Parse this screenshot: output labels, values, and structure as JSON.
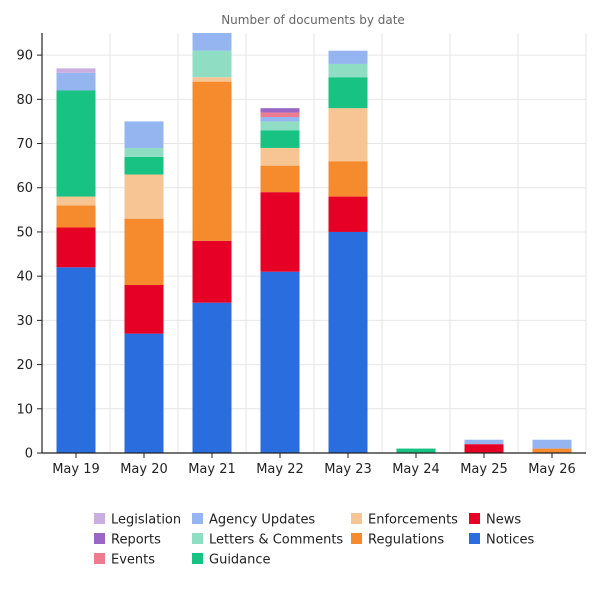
{
  "chart_data": {
    "type": "bar",
    "stacked": true,
    "title": "Number of documents by date",
    "xlabel": "",
    "ylabel": "",
    "ylim": [
      0,
      95
    ],
    "y_ticks": [
      "0",
      "10",
      "20",
      "30",
      "40",
      "50",
      "60",
      "70",
      "80",
      "90"
    ],
    "grid": true,
    "legend_position": "bottom",
    "categories": [
      "May 19",
      "May 20",
      "May 21",
      "May 22",
      "May 23",
      "May 24",
      "May 25",
      "May 26"
    ],
    "series": [
      {
        "name": "Notices",
        "color": "#2a6ddf",
        "values": [
          42,
          27,
          34,
          41,
          50,
          0,
          0,
          0
        ]
      },
      {
        "name": "News",
        "color": "#e60026",
        "values": [
          9,
          11,
          14,
          18,
          8,
          0,
          2,
          0
        ]
      },
      {
        "name": "Regulations",
        "color": "#f58b2d",
        "values": [
          5,
          15,
          36,
          6,
          8,
          0,
          0,
          1
        ]
      },
      {
        "name": "Enforcements",
        "color": "#f7c493",
        "values": [
          2,
          10,
          1,
          4,
          12,
          0,
          0,
          0
        ]
      },
      {
        "name": "Guidance",
        "color": "#17c283",
        "values": [
          24,
          4,
          0,
          4,
          7,
          1,
          0,
          0
        ]
      },
      {
        "name": "Letters & Comments",
        "color": "#8fdec4",
        "values": [
          0,
          2,
          6,
          2,
          3,
          0,
          0,
          0
        ]
      },
      {
        "name": "Agency Updates",
        "color": "#94b5ef",
        "values": [
          4,
          6,
          4,
          1,
          3,
          0,
          1,
          2
        ]
      },
      {
        "name": "Events",
        "color": "#ef7b8e",
        "values": [
          0,
          0,
          0,
          1,
          0,
          0,
          0,
          0
        ]
      },
      {
        "name": "Reports",
        "color": "#9a67c6",
        "values": [
          0,
          0,
          0,
          1,
          0,
          0,
          0,
          0
        ]
      },
      {
        "name": "Legislation",
        "color": "#cbaee0",
        "values": [
          1,
          0,
          0,
          0,
          0,
          0,
          0,
          0
        ]
      }
    ],
    "legend": [
      [
        "Legislation",
        "Reports",
        "Events"
      ],
      [
        "Agency Updates",
        "Letters & Comments",
        "Guidance"
      ],
      [
        "Enforcements",
        "Regulations"
      ],
      [
        "News",
        "Notices"
      ]
    ]
  }
}
